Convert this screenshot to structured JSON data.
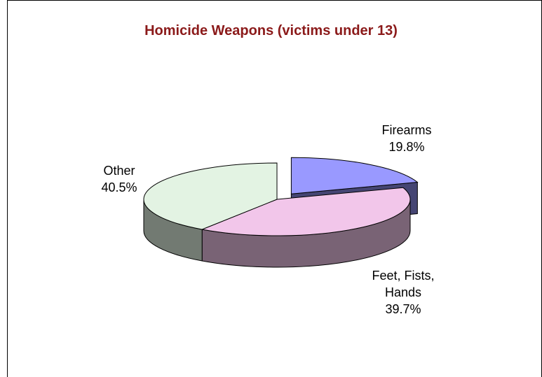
{
  "chart_data": {
    "type": "pie",
    "title": "Homicide Weapons (victims under 13)",
    "categories": [
      "Firearms",
      "Feet, Fists, Hands",
      "Other"
    ],
    "values": [
      19.8,
      39.7,
      40.5
    ],
    "value_labels": [
      "19.8%",
      "39.7%",
      "40.5%"
    ],
    "colors": [
      "#9999ff",
      "#f2c6ea",
      "#e3f3e3"
    ]
  }
}
